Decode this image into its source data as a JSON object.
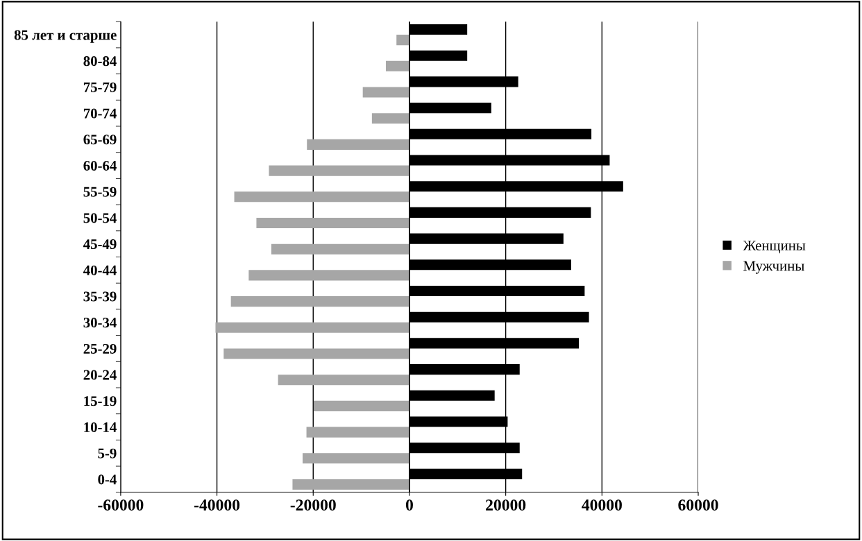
{
  "chart_data": {
    "type": "bar",
    "orientation": "horizontal",
    "categories": [
      "85 лет и старше",
      "80-84",
      "75-79",
      "70-74",
      "65-69",
      "60-64",
      "55-59",
      "50-54",
      "45-49",
      "40-44",
      "35-39",
      "30-34",
      "25-29",
      "20-24",
      "15-19",
      "10-14",
      "5-9",
      "0-4"
    ],
    "series": [
      {
        "name": "Женщины",
        "color": "#000000",
        "values": [
          12000,
          12000,
          22600,
          17000,
          37800,
          41600,
          44400,
          37700,
          32000,
          33600,
          36400,
          37300,
          35200,
          22900,
          17700,
          20400,
          22900,
          23400
        ]
      },
      {
        "name": "Мужчины",
        "color": "#a6a6a6",
        "values": [
          -2700,
          -4900,
          -9700,
          -7800,
          -21300,
          -29200,
          -36400,
          -31800,
          -28700,
          -33400,
          -37100,
          -40300,
          -38600,
          -27300,
          -19900,
          -21400,
          -22200,
          -24300
        ]
      }
    ],
    "xlim": [
      -60000,
      60000
    ],
    "xticks": [
      -60000,
      -40000,
      -20000,
      0,
      20000,
      40000,
      60000
    ],
    "grid": "x",
    "legend": "right"
  }
}
